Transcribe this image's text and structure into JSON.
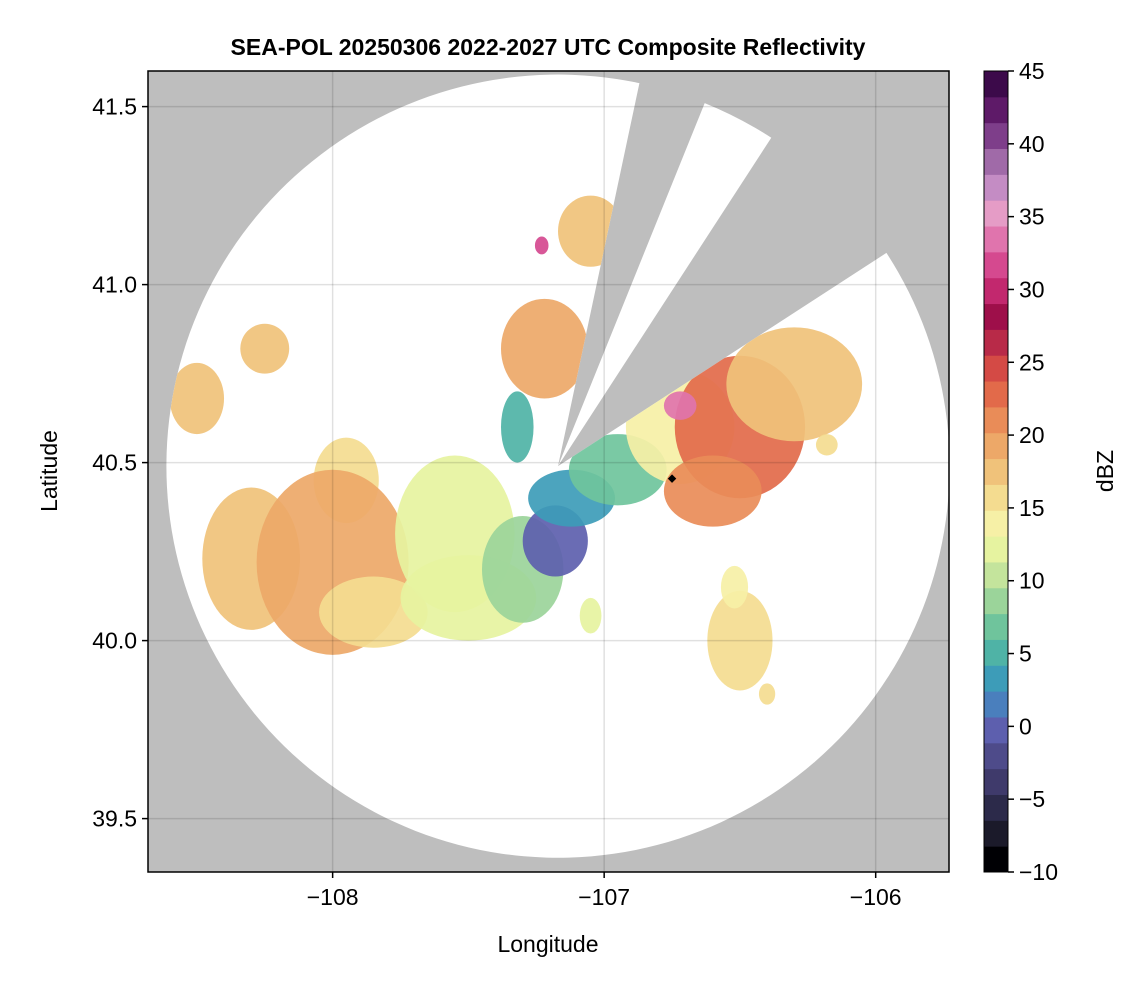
{
  "chart_data": {
    "type": "heatmap",
    "title": "SEA-POL 20250306 2022-2027 UTC Composite Reflectivity",
    "xlabel": "Longitude",
    "ylabel": "Latitude",
    "xlim": [
      -108.68,
      -105.73
    ],
    "ylim": [
      39.35,
      41.6
    ],
    "x_ticks": [
      {
        "value": -108,
        "label": "−108"
      },
      {
        "value": -107,
        "label": "−107"
      },
      {
        "value": -106,
        "label": "−106"
      }
    ],
    "y_ticks": [
      {
        "value": 39.5,
        "label": "39.5"
      },
      {
        "value": 40.0,
        "label": "40.0"
      },
      {
        "value": 40.5,
        "label": "40.5"
      },
      {
        "value": 41.0,
        "label": "41.0"
      },
      {
        "value": 41.5,
        "label": "41.5"
      }
    ],
    "grid": true,
    "colorbar": {
      "label": "dBZ",
      "range": [
        -10,
        45
      ],
      "ticks": [
        {
          "value": -10,
          "label": "−10"
        },
        {
          "value": -5,
          "label": "−5"
        },
        {
          "value": 0,
          "label": "0"
        },
        {
          "value": 5,
          "label": "5"
        },
        {
          "value": 10,
          "label": "10"
        },
        {
          "value": 15,
          "label": "15"
        },
        {
          "value": 20,
          "label": "20"
        },
        {
          "value": 25,
          "label": "25"
        },
        {
          "value": 30,
          "label": "30"
        },
        {
          "value": 35,
          "label": "35"
        },
        {
          "value": 40,
          "label": "40"
        },
        {
          "value": 45,
          "label": "45"
        }
      ],
      "colors": [
        "#000004",
        "#1b1a2a",
        "#2c2a4a",
        "#3f3a6b",
        "#4e4b8a",
        "#5d5fae",
        "#4a7fbd",
        "#3d9cb8",
        "#4fb3a6",
        "#6fc49c",
        "#9bd49a",
        "#c4e49c",
        "#e6f3a0",
        "#f6f0a6",
        "#f4dc90",
        "#f0c27a",
        "#eda868",
        "#e98c58",
        "#e26a4a",
        "#d44a45",
        "#b82a48",
        "#9e0f4a",
        "#c2286e",
        "#d5498f",
        "#e074ad",
        "#e59cc6",
        "#c48cc4",
        "#a06aa8",
        "#7e3e8a",
        "#5e1a68",
        "#3c0a4a"
      ]
    },
    "missing_color": "#bebebe",
    "radar": {
      "center": [
        -107.17,
        40.49
      ],
      "range_lat_deg": 1.1,
      "blocked_sectors_deg": [
        {
          "from": 12,
          "to": 22
        },
        {
          "from": 33,
          "to": 57
        }
      ]
    },
    "site_marker": {
      "lon": -106.75,
      "lat": 40.455
    },
    "echoes": [
      {
        "lon": -108.5,
        "lat": 40.68,
        "rx": 0.1,
        "ry": 0.1,
        "dbz": 17
      },
      {
        "lon": -108.25,
        "lat": 40.82,
        "rx": 0.09,
        "ry": 0.07,
        "dbz": 18
      },
      {
        "lon": -107.95,
        "lat": 40.45,
        "rx": 0.12,
        "ry": 0.12,
        "dbz": 16
      },
      {
        "lon": -108.3,
        "lat": 40.23,
        "rx": 0.18,
        "ry": 0.2,
        "dbz": 17
      },
      {
        "lon": -108.0,
        "lat": 40.22,
        "rx": 0.28,
        "ry": 0.26,
        "dbz": 19
      },
      {
        "lon": -107.85,
        "lat": 40.08,
        "rx": 0.2,
        "ry": 0.1,
        "dbz": 15
      },
      {
        "lon": -107.55,
        "lat": 40.3,
        "rx": 0.22,
        "ry": 0.22,
        "dbz": 13
      },
      {
        "lon": -107.5,
        "lat": 40.12,
        "rx": 0.25,
        "ry": 0.12,
        "dbz": 12
      },
      {
        "lon": -107.3,
        "lat": 40.2,
        "rx": 0.15,
        "ry": 0.15,
        "dbz": 8
      },
      {
        "lon": -107.18,
        "lat": 40.28,
        "rx": 0.12,
        "ry": 0.1,
        "dbz": 0
      },
      {
        "lon": -107.12,
        "lat": 40.4,
        "rx": 0.16,
        "ry": 0.08,
        "dbz": 3
      },
      {
        "lon": -106.95,
        "lat": 40.48,
        "rx": 0.18,
        "ry": 0.1,
        "dbz": 7
      },
      {
        "lon": -107.22,
        "lat": 40.82,
        "rx": 0.16,
        "ry": 0.14,
        "dbz": 19
      },
      {
        "lon": -107.32,
        "lat": 40.6,
        "rx": 0.06,
        "ry": 0.1,
        "dbz": 5
      },
      {
        "lon": -107.05,
        "lat": 41.15,
        "rx": 0.12,
        "ry": 0.1,
        "dbz": 17
      },
      {
        "lon": -107.23,
        "lat": 41.11,
        "rx": 0.025,
        "ry": 0.025,
        "dbz": 32
      },
      {
        "lon": -106.72,
        "lat": 40.6,
        "rx": 0.2,
        "ry": 0.16,
        "dbz": 14
      },
      {
        "lon": -106.5,
        "lat": 40.6,
        "rx": 0.24,
        "ry": 0.2,
        "dbz": 22
      },
      {
        "lon": -106.3,
        "lat": 40.72,
        "rx": 0.25,
        "ry": 0.16,
        "dbz": 18
      },
      {
        "lon": -106.72,
        "lat": 40.66,
        "rx": 0.06,
        "ry": 0.04,
        "dbz": 33
      },
      {
        "lon": -106.6,
        "lat": 40.42,
        "rx": 0.18,
        "ry": 0.1,
        "dbz": 21
      },
      {
        "lon": -106.5,
        "lat": 40.0,
        "rx": 0.12,
        "ry": 0.14,
        "dbz": 15
      },
      {
        "lon": -106.52,
        "lat": 40.15,
        "rx": 0.05,
        "ry": 0.06,
        "dbz": 14
      },
      {
        "lon": -106.18,
        "lat": 40.55,
        "rx": 0.04,
        "ry": 0.03,
        "dbz": 16
      },
      {
        "lon": -107.05,
        "lat": 40.07,
        "rx": 0.04,
        "ry": 0.05,
        "dbz": 12
      },
      {
        "lon": -106.4,
        "lat": 39.85,
        "rx": 0.03,
        "ry": 0.03,
        "dbz": 16
      }
    ]
  }
}
